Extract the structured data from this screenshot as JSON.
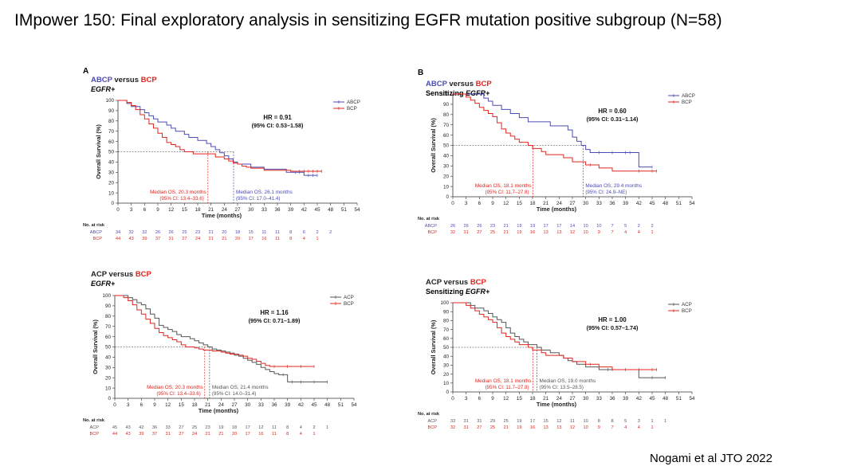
{
  "page": {
    "title": "IMpower 150: Final exploratory analysis in sensitizing EGFR mutation positive subgroup (N=58)",
    "footer": "Nogami et al JTO 2022"
  },
  "colors": {
    "abcp": "#4b4bb5",
    "bcp": "#e0261f",
    "acp": "#555555"
  },
  "chart_data": [
    {
      "type": "line",
      "panel_label": "A",
      "title_parts": [
        "ABCP",
        " versus ",
        "BCP"
      ],
      "subtitle_parts": [
        "",
        "EGFR+"
      ],
      "xlabel": "Time (months)",
      "ylabel": "Overall Survival (%)",
      "xlim": [
        0,
        54
      ],
      "ylim": [
        0,
        100
      ],
      "xticks": [
        0,
        3,
        6,
        9,
        12,
        15,
        18,
        21,
        24,
        27,
        30,
        33,
        36,
        39,
        42,
        45,
        48,
        51,
        54
      ],
      "yticks": [
        0,
        10,
        20,
        30,
        40,
        50,
        60,
        70,
        80,
        90,
        100
      ],
      "hr": "HR = 0.91",
      "ci": "(95% CI: 0.53–1.58)",
      "series": [
        {
          "name": "ABCP",
          "color_key": "abcp",
          "x": [
            0,
            2,
            3,
            4,
            5,
            6,
            7,
            8,
            9,
            10,
            11,
            12,
            13,
            14,
            15,
            16,
            17,
            18,
            19,
            20,
            21,
            22,
            23,
            24,
            25,
            26,
            27,
            28,
            29,
            30,
            31,
            32,
            33,
            34,
            35,
            36,
            37,
            38,
            39,
            40,
            41,
            42,
            43,
            44,
            45
          ],
          "y": [
            100,
            97,
            94,
            94,
            91,
            88,
            85,
            82,
            79,
            79,
            76,
            73,
            70,
            70,
            67,
            64,
            64,
            61,
            61,
            58,
            55,
            52,
            49,
            46,
            43,
            40,
            38,
            38,
            38,
            35,
            35,
            35,
            33,
            33,
            33,
            33,
            33,
            30,
            30,
            30,
            30,
            27,
            27,
            27,
            27
          ]
        },
        {
          "name": "BCP",
          "color_key": "bcp",
          "x": [
            0,
            2,
            3,
            4,
            5,
            6,
            7,
            8,
            9,
            10,
            11,
            12,
            13,
            14,
            15,
            16,
            17,
            18,
            19,
            20,
            21,
            22,
            23,
            24,
            25,
            26,
            27,
            28,
            29,
            30,
            31,
            32,
            33,
            34,
            35,
            36,
            37,
            38,
            39,
            40,
            41,
            42,
            43,
            44,
            45,
            46
          ],
          "y": [
            100,
            98,
            95,
            91,
            86,
            82,
            77,
            73,
            68,
            64,
            59,
            57,
            55,
            52,
            50,
            50,
            48,
            48,
            48,
            48,
            48,
            45,
            45,
            43,
            41,
            39,
            38,
            36,
            35,
            34,
            34,
            34,
            32,
            32,
            32,
            32,
            32,
            32,
            31,
            31,
            31,
            31,
            31,
            31,
            31,
            31
          ]
        }
      ],
      "median_a": {
        "label": "Median OS, 20.3 months",
        "ci": "(95% CI: 13.4–33.6)",
        "x": 20.3,
        "color_key": "bcp"
      },
      "median_b": {
        "label": "Median OS, 26.1 months",
        "ci": "(95% CI: 17.0–41.4)",
        "x": 26.1,
        "color_key": "abcp"
      },
      "risk": {
        "header": "No. at risk",
        "rows": [
          {
            "name": "ABCP",
            "color_key": "abcp",
            "values": [
              "34",
              "32",
              "32",
              "26",
              "26",
              "25",
              "23",
              "21",
              "20",
              "18",
              "15",
              "11",
              "11",
              "8",
              "6",
              "2",
              "2"
            ]
          },
          {
            "name": "BCP",
            "color_key": "bcp",
            "values": [
              "44",
              "43",
              "39",
              "37",
              "31",
              "27",
              "24",
              "21",
              "21",
              "20",
              "17",
              "16",
              "11",
              "8",
              "4",
              "1"
            ]
          }
        ]
      }
    },
    {
      "type": "line",
      "panel_label": "B",
      "title_parts": [
        "ABCP",
        " versus ",
        "BCP"
      ],
      "subtitle_parts": [
        "Sensitizing ",
        "EGFR+"
      ],
      "xlabel": "Time (months)",
      "ylabel": "Overall Survival (%)",
      "xlim": [
        0,
        54
      ],
      "ylim": [
        0,
        100
      ],
      "xticks": [
        0,
        3,
        6,
        9,
        12,
        15,
        18,
        21,
        24,
        27,
        30,
        33,
        36,
        39,
        42,
        45,
        48,
        51,
        54
      ],
      "yticks": [
        0,
        10,
        20,
        30,
        40,
        50,
        60,
        70,
        80,
        90,
        100
      ],
      "hr": "HR = 0.60",
      "ci": "(95% CI: 0.31–1.14)",
      "series": [
        {
          "name": "ABCP",
          "color_key": "abcp",
          "x": [
            0,
            6,
            7,
            8,
            9,
            10,
            11,
            12,
            13,
            14,
            15,
            16,
            17,
            18,
            19,
            20,
            21,
            22,
            24,
            26,
            27,
            28,
            29,
            30,
            31,
            33,
            36,
            39,
            40,
            42,
            45
          ],
          "y": [
            100,
            100,
            96,
            93,
            89,
            89,
            85,
            85,
            81,
            81,
            77,
            77,
            73,
            73,
            73,
            73,
            73,
            69,
            69,
            65,
            58,
            54,
            50,
            46,
            43,
            43,
            43,
            43,
            43,
            29,
            29
          ]
        },
        {
          "name": "BCP",
          "color_key": "bcp",
          "x": [
            0,
            2,
            3,
            4,
            5,
            6,
            7,
            8,
            9,
            10,
            11,
            12,
            13,
            14,
            15,
            16,
            17,
            18,
            19,
            20,
            21,
            22,
            24,
            25,
            26,
            27,
            28,
            30,
            31,
            33,
            36,
            42,
            45,
            46
          ],
          "y": [
            100,
            100,
            97,
            94,
            91,
            87,
            84,
            81,
            78,
            72,
            66,
            62,
            59,
            56,
            53,
            53,
            50,
            47,
            47,
            44,
            41,
            41,
            41,
            38,
            38,
            34,
            34,
            31,
            31,
            28,
            25,
            25,
            25,
            25
          ]
        }
      ],
      "median_a": {
        "label": "Median OS, 18.1 months",
        "ci": "(95% CI: 11.7–27.8)",
        "x": 18.1,
        "color_key": "bcp"
      },
      "median_b": {
        "label": "Median OS, 29.4 months",
        "ci": "(95% CI: 24.9–NE)",
        "x": 29.4,
        "color_key": "abcp"
      },
      "risk": {
        "header": "No. at risk",
        "rows": [
          {
            "name": "ABCP",
            "color_key": "abcp",
            "values": [
              "26",
              "26",
              "26",
              "23",
              "21",
              "19",
              "19",
              "17",
              "17",
              "14",
              "10",
              "10",
              "7",
              "5",
              "2",
              "2"
            ]
          },
          {
            "name": "BCP",
            "color_key": "bcp",
            "values": [
              "32",
              "31",
              "27",
              "25",
              "21",
              "19",
              "16",
              "13",
              "13",
              "12",
              "10",
              "9",
              "7",
              "4",
              "4",
              "1"
            ]
          }
        ]
      }
    },
    {
      "type": "line",
      "panel_label": "",
      "title_parts": [
        "ACP",
        " versus ",
        "BCP"
      ],
      "subtitle_parts": [
        "",
        "EGFR+"
      ],
      "xlabel": "Time (months)",
      "ylabel": "Overall Survival (%)",
      "xlim": [
        0,
        54
      ],
      "ylim": [
        0,
        100
      ],
      "xticks": [
        0,
        3,
        6,
        9,
        12,
        15,
        18,
        21,
        24,
        27,
        30,
        33,
        36,
        39,
        42,
        45,
        48,
        51,
        54
      ],
      "yticks": [
        0,
        10,
        20,
        30,
        40,
        50,
        60,
        70,
        80,
        90,
        100
      ],
      "hr": "HR = 1.16",
      "ci": "(95% CI: 0.71–1.89)",
      "series": [
        {
          "name": "ACP",
          "color_key": "acp",
          "x": [
            0,
            2,
            3,
            4,
            5,
            6,
            7,
            8,
            9,
            10,
            11,
            12,
            13,
            14,
            15,
            16,
            17,
            18,
            19,
            20,
            21,
            22,
            23,
            24,
            25,
            26,
            27,
            28,
            29,
            30,
            31,
            32,
            33,
            34,
            35,
            36,
            37,
            38,
            39,
            40,
            42,
            45,
            48
          ],
          "y": [
            100,
            100,
            98,
            96,
            93,
            91,
            87,
            82,
            78,
            71,
            69,
            67,
            65,
            62,
            60,
            60,
            58,
            56,
            54,
            52,
            50,
            48,
            47,
            46,
            45,
            44,
            42,
            41,
            39,
            37,
            35,
            33,
            30,
            28,
            26,
            24,
            23,
            23,
            16,
            16,
            16,
            16,
            16
          ]
        },
        {
          "name": "BCP",
          "color_key": "bcp",
          "x": [
            0,
            2,
            3,
            4,
            5,
            6,
            7,
            8,
            9,
            10,
            11,
            12,
            13,
            14,
            15,
            16,
            17,
            18,
            19,
            20,
            21,
            22,
            23,
            24,
            25,
            26,
            27,
            28,
            29,
            30,
            31,
            32,
            33,
            34,
            35,
            36,
            39,
            42,
            45
          ],
          "y": [
            100,
            98,
            95,
            91,
            86,
            82,
            77,
            73,
            68,
            64,
            61,
            59,
            57,
            55,
            52,
            50,
            50,
            49,
            48,
            47,
            47,
            46,
            46,
            45,
            44,
            43,
            43,
            42,
            41,
            39,
            38,
            36,
            34,
            32,
            31,
            31,
            31,
            31,
            31
          ]
        }
      ],
      "median_a": {
        "label": "Median OS, 20.3 months",
        "ci": "(95% CI: 13.4–33.6)",
        "x": 20.3,
        "color_key": "bcp"
      },
      "median_b": {
        "label": "Median OS, 21.4 months",
        "ci": "(95% CI: 14.0–31.4)",
        "x": 21.4,
        "color_key": "acp"
      },
      "risk": {
        "header": "No. at risk",
        "rows": [
          {
            "name": "ACP",
            "color_key": "acp",
            "values": [
              "45",
              "43",
              "42",
              "36",
              "33",
              "27",
              "25",
              "23",
              "19",
              "18",
              "17",
              "12",
              "11",
              "8",
              "4",
              "2",
              "1"
            ]
          },
          {
            "name": "BCP",
            "color_key": "bcp",
            "values": [
              "44",
              "43",
              "39",
              "37",
              "31",
              "27",
              "24",
              "21",
              "21",
              "20",
              "17",
              "16",
              "11",
              "8",
              "4",
              "1"
            ]
          }
        ]
      }
    },
    {
      "type": "line",
      "panel_label": "",
      "title_parts": [
        "ACP",
        " versus ",
        "BCP"
      ],
      "subtitle_parts": [
        "Sensitizing ",
        "EGFR+"
      ],
      "xlabel": "Time (months)",
      "ylabel": "Overall Survival (%)",
      "xlim": [
        0,
        54
      ],
      "ylim": [
        0,
        100
      ],
      "xticks": [
        0,
        3,
        6,
        9,
        12,
        15,
        18,
        21,
        24,
        27,
        30,
        33,
        36,
        39,
        42,
        45,
        48,
        51,
        54
      ],
      "yticks": [
        0,
        10,
        20,
        30,
        40,
        50,
        60,
        70,
        80,
        90,
        100
      ],
      "hr": "HR = 1.00",
      "ci": "(95% CI: 0.57–1.74)",
      "series": [
        {
          "name": "ACP",
          "color_key": "acp",
          "x": [
            0,
            3,
            4,
            5,
            6,
            7,
            8,
            9,
            10,
            11,
            12,
            13,
            14,
            15,
            16,
            17,
            18,
            19,
            20,
            21,
            22,
            24,
            25,
            26,
            27,
            28,
            30,
            31,
            33,
            35,
            36,
            39,
            42,
            45,
            48
          ],
          "y": [
            100,
            100,
            97,
            94,
            94,
            91,
            88,
            84,
            81,
            78,
            72,
            66,
            62,
            59,
            56,
            53,
            53,
            50,
            47,
            47,
            44,
            41,
            38,
            35,
            34,
            31,
            28,
            28,
            25,
            25,
            25,
            25,
            16,
            16,
            16
          ]
        },
        {
          "name": "BCP",
          "color_key": "bcp",
          "x": [
            0,
            2,
            3,
            4,
            5,
            6,
            7,
            8,
            9,
            10,
            11,
            12,
            13,
            14,
            15,
            16,
            17,
            18,
            19,
            20,
            21,
            22,
            24,
            25,
            26,
            27,
            28,
            30,
            31,
            33,
            36,
            42,
            45,
            46
          ],
          "y": [
            100,
            100,
            97,
            94,
            91,
            87,
            84,
            81,
            78,
            72,
            66,
            62,
            59,
            56,
            53,
            53,
            50,
            47,
            47,
            44,
            41,
            41,
            41,
            38,
            38,
            34,
            34,
            31,
            31,
            28,
            25,
            25,
            25,
            25
          ]
        }
      ],
      "median_a": {
        "label": "Median OS, 18.1 months",
        "ci": "(95% CI: 11.7–27.8)",
        "x": 18.1,
        "color_key": "bcp"
      },
      "median_b": {
        "label": "Median OS, 19.0 months",
        "ci": "(95% CI: 13.5–28.5)",
        "x": 19.0,
        "color_key": "acp"
      },
      "risk": {
        "header": "No. at risk",
        "rows": [
          {
            "name": "ACP",
            "color_key": "acp",
            "values": [
              "33",
              "31",
              "31",
              "29",
              "25",
              "19",
              "17",
              "15",
              "12",
              "11",
              "10",
              "8",
              "8",
              "5",
              "3",
              "1",
              "1"
            ]
          },
          {
            "name": "BCP",
            "color_key": "bcp",
            "values": [
              "32",
              "31",
              "27",
              "25",
              "21",
              "19",
              "16",
              "13",
              "13",
              "12",
              "10",
              "9",
              "7",
              "4",
              "4",
              "1"
            ]
          }
        ]
      }
    }
  ]
}
